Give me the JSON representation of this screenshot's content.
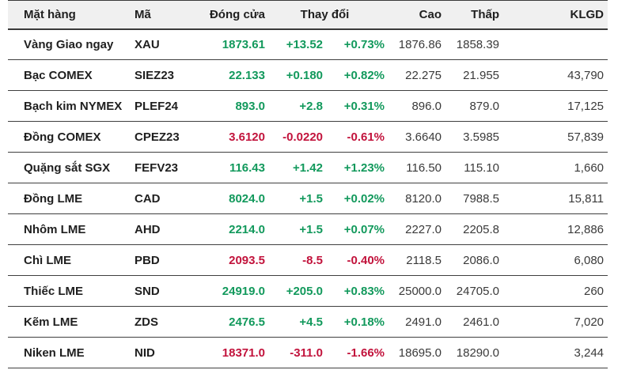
{
  "colors": {
    "up": "#12995c",
    "down": "#c2133c",
    "header_bg": "#f0f0f0",
    "text_dark": "#1f1f1f",
    "text_neutral": "#3a3a3a"
  },
  "table": {
    "header": {
      "name": "Mặt hàng",
      "code": "Mã",
      "close": "Đóng cửa",
      "change": "Thay đổi",
      "high": "Cao",
      "low": "Thấp",
      "volume": "KLGD"
    },
    "rows": [
      {
        "name": "Vàng Giao ngay",
        "code": "XAU",
        "close": "1873.61",
        "change": "+13.52",
        "pct": "+0.73%",
        "high": "1876.86",
        "low": "1858.39",
        "volume": "",
        "direction": "up"
      },
      {
        "name": "Bạc COMEX",
        "code": "SIEZ23",
        "close": "22.133",
        "change": "+0.180",
        "pct": "+0.82%",
        "high": "22.275",
        "low": "21.955",
        "volume": "43,790",
        "direction": "up"
      },
      {
        "name": "Bạch kim NYMEX",
        "code": "PLEF24",
        "close": "893.0",
        "change": "+2.8",
        "pct": "+0.31%",
        "high": "896.0",
        "low": "879.0",
        "volume": "17,125",
        "direction": "up"
      },
      {
        "name": "Đồng COMEX",
        "code": "CPEZ23",
        "close": "3.6120",
        "change": "-0.0220",
        "pct": "-0.61%",
        "high": "3.6640",
        "low": "3.5985",
        "volume": "57,839",
        "direction": "down"
      },
      {
        "name": "Quặng sắt SGX",
        "code": "FEFV23",
        "close": "116.43",
        "change": "+1.42",
        "pct": "+1.23%",
        "high": "116.50",
        "low": "115.10",
        "volume": "1,660",
        "direction": "up"
      },
      {
        "name": "Đồng LME",
        "code": "CAD",
        "close": "8024.0",
        "change": "+1.5",
        "pct": "+0.02%",
        "high": "8120.0",
        "low": "7988.5",
        "volume": "15,811",
        "direction": "up"
      },
      {
        "name": "Nhôm LME",
        "code": "AHD",
        "close": "2214.0",
        "change": "+1.5",
        "pct": "+0.07%",
        "high": "2227.0",
        "low": "2205.8",
        "volume": "12,886",
        "direction": "up"
      },
      {
        "name": "Chì LME",
        "code": "PBD",
        "close": "2093.5",
        "change": "-8.5",
        "pct": "-0.40%",
        "high": "2118.5",
        "low": "2086.0",
        "volume": "6,080",
        "direction": "down"
      },
      {
        "name": "Thiếc LME",
        "code": "SND",
        "close": "24919.0",
        "change": "+205.0",
        "pct": "+0.83%",
        "high": "25000.0",
        "low": "24705.0",
        "volume": "260",
        "direction": "up"
      },
      {
        "name": "Kẽm LME",
        "code": "ZDS",
        "close": "2476.5",
        "change": "+4.5",
        "pct": "+0.18%",
        "high": "2491.0",
        "low": "2461.0",
        "volume": "7,020",
        "direction": "up"
      },
      {
        "name": "Niken LME",
        "code": "NID",
        "close": "18371.0",
        "change": "-311.0",
        "pct": "-1.66%",
        "high": "18695.0",
        "low": "18290.0",
        "volume": "3,244",
        "direction": "down"
      }
    ]
  }
}
